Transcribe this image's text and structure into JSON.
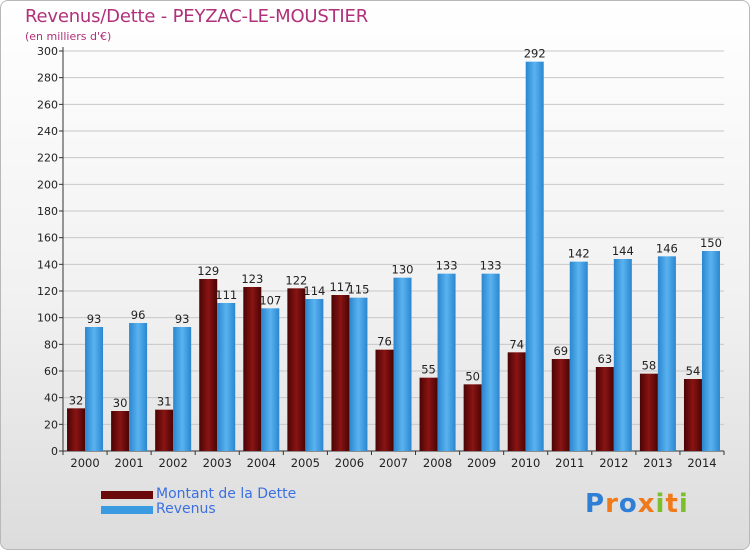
{
  "title": "Revenus/Dette - PEYZAC-LE-MOUSTIER",
  "subtitle": "(en milliers d'€)",
  "logo": {
    "text": "Proxiti",
    "letters": [
      "P",
      "r",
      "o",
      "x",
      "i",
      "t",
      "i"
    ],
    "colors": [
      "#2f7fd6",
      "#f07a1a",
      "#2f7fd6",
      "#f07a1a",
      "#7cbf2a",
      "#f07a1a",
      "#7cbf2a"
    ]
  },
  "colors": {
    "dette": "#6a0a0a",
    "revenus": "#3a9be0",
    "title": "#b0307a",
    "legend_text": "#3c70e0"
  },
  "chart_data": {
    "type": "bar",
    "title": "Revenus/Dette - PEYZAC-LE-MOUSTIER",
    "ylabel": "(en milliers d'€)",
    "categories": [
      "2000",
      "2001",
      "2002",
      "2003",
      "2004",
      "2005",
      "2006",
      "2007",
      "2008",
      "2009",
      "2010",
      "2011",
      "2012",
      "2013",
      "2014"
    ],
    "series": [
      {
        "name": "Montant de la Dette",
        "color": "#6a0a0a",
        "values": [
          32,
          30,
          31,
          129,
          123,
          122,
          117,
          76,
          55,
          50,
          74,
          69,
          63,
          58,
          54
        ]
      },
      {
        "name": "Revenus",
        "color": "#3a9be0",
        "values": [
          93,
          96,
          93,
          111,
          107,
          114,
          115,
          130,
          133,
          133,
          292,
          142,
          144,
          146,
          150
        ]
      }
    ],
    "ylim": [
      0,
      300
    ],
    "yticks": [
      0,
      20,
      40,
      60,
      80,
      100,
      120,
      140,
      160,
      180,
      200,
      220,
      240,
      260,
      280,
      300
    ],
    "grid": true,
    "legend_position": "bottom-left"
  }
}
